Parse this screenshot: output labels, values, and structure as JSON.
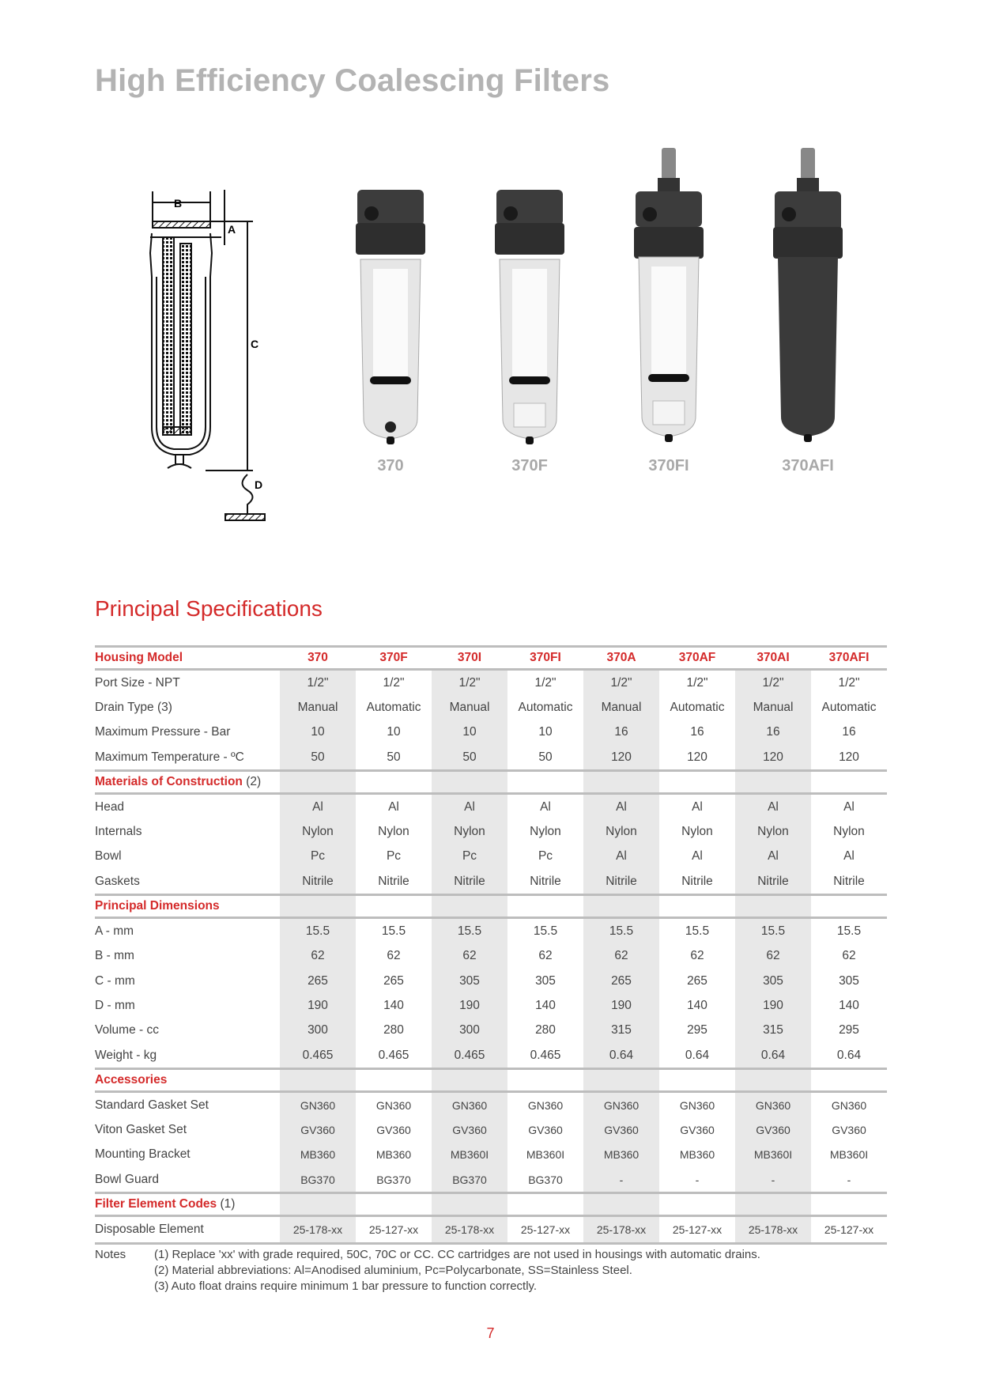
{
  "title": "High Efficiency Coalescing Filters",
  "diagram": {
    "labels": [
      "A",
      "B",
      "C",
      "D"
    ]
  },
  "products": [
    {
      "label": "370",
      "body": "clear",
      "drain": "manual",
      "valve": false
    },
    {
      "label": "370F",
      "body": "clear",
      "drain": "automatic",
      "valve": false
    },
    {
      "label": "370FI",
      "body": "clear",
      "drain": "automatic",
      "valve": true
    },
    {
      "label": "370AFI",
      "body": "metal",
      "drain": "automatic",
      "valve": true
    }
  ],
  "specs_title": "Principal Specifications",
  "table": {
    "header_label": "Housing Model",
    "models": [
      "370",
      "370F",
      "370I",
      "370FI",
      "370A",
      "370AF",
      "370AI",
      "370AFI"
    ],
    "groups": [
      {
        "title": "",
        "rows": [
          {
            "label": "Port Size - NPT",
            "values": [
              "1/2\"",
              "1/2\"",
              "1/2\"",
              "1/2\"",
              "1/2\"",
              "1/2\"",
              "1/2\"",
              "1/2\""
            ]
          },
          {
            "label": "Drain Type (3)",
            "values": [
              "Manual",
              "Automatic",
              "Manual",
              "Automatic",
              "Manual",
              "Automatic",
              "Manual",
              "Automatic"
            ]
          },
          {
            "label": "Maximum Pressure - Bar",
            "values": [
              "10",
              "10",
              "10",
              "10",
              "16",
              "16",
              "16",
              "16"
            ]
          },
          {
            "label": "Maximum Temperature - ºC",
            "values": [
              "50",
              "50",
              "50",
              "50",
              "120",
              "120",
              "120",
              "120"
            ]
          }
        ]
      },
      {
        "title": "Materials of Construction",
        "note": "(2)",
        "rows": [
          {
            "label": "Head",
            "values": [
              "Al",
              "Al",
              "Al",
              "Al",
              "Al",
              "Al",
              "Al",
              "Al"
            ]
          },
          {
            "label": "Internals",
            "values": [
              "Nylon",
              "Nylon",
              "Nylon",
              "Nylon",
              "Nylon",
              "Nylon",
              "Nylon",
              "Nylon"
            ]
          },
          {
            "label": "Bowl",
            "values": [
              "Pc",
              "Pc",
              "Pc",
              "Pc",
              "Al",
              "Al",
              "Al",
              "Al"
            ]
          },
          {
            "label": "Gaskets",
            "values": [
              "Nitrile",
              "Nitrile",
              "Nitrile",
              "Nitrile",
              "Nitrile",
              "Nitrile",
              "Nitrile",
              "Nitrile"
            ]
          }
        ]
      },
      {
        "title": "Principal Dimensions",
        "note": "",
        "rows": [
          {
            "label": "A - mm",
            "values": [
              "15.5",
              "15.5",
              "15.5",
              "15.5",
              "15.5",
              "15.5",
              "15.5",
              "15.5"
            ]
          },
          {
            "label": "B - mm",
            "values": [
              "62",
              "62",
              "62",
              "62",
              "62",
              "62",
              "62",
              "62"
            ]
          },
          {
            "label": "C - mm",
            "values": [
              "265",
              "265",
              "305",
              "305",
              "265",
              "265",
              "305",
              "305"
            ]
          },
          {
            "label": "D - mm",
            "values": [
              "190",
              "140",
              "190",
              "140",
              "190",
              "140",
              "190",
              "140"
            ]
          },
          {
            "label": "Volume - cc",
            "values": [
              "300",
              "280",
              "300",
              "280",
              "315",
              "295",
              "315",
              "295"
            ]
          },
          {
            "label": "Weight - kg",
            "values": [
              "0.465",
              "0.465",
              "0.465",
              "0.465",
              "0.64",
              "0.64",
              "0.64",
              "0.64"
            ]
          }
        ]
      },
      {
        "title": "Accessories",
        "note": "",
        "small": true,
        "rows": [
          {
            "label": "Standard Gasket Set",
            "values": [
              "GN360",
              "GN360",
              "GN360",
              "GN360",
              "GN360",
              "GN360",
              "GN360",
              "GN360"
            ]
          },
          {
            "label": "Viton Gasket Set",
            "values": [
              "GV360",
              "GV360",
              "GV360",
              "GV360",
              "GV360",
              "GV360",
              "GV360",
              "GV360"
            ]
          },
          {
            "label": "Mounting Bracket",
            "values": [
              "MB360",
              "MB360",
              "MB360I",
              "MB360I",
              "MB360",
              "MB360",
              "MB360I",
              "MB360I"
            ]
          },
          {
            "label": "Bowl Guard",
            "values": [
              "BG370",
              "BG370",
              "BG370",
              "BG370",
              "-",
              "-",
              "-",
              "-"
            ]
          }
        ]
      },
      {
        "title": "Filter Element Codes",
        "note": "(1)",
        "small": true,
        "rows": [
          {
            "label": "Disposable Element",
            "values": [
              "25-178-xx",
              "25-127-xx",
              "25-178-xx",
              "25-127-xx",
              "25-178-xx",
              "25-127-xx",
              "25-178-xx",
              "25-127-xx"
            ]
          }
        ]
      }
    ]
  },
  "notes": {
    "label": "Notes",
    "items": [
      "(1)  Replace 'xx' with grade required, 50C, 70C or CC. CC cartridges are not used in housings with automatic drains.",
      "(2)  Material abbreviations: Al=Anodised aluminium, Pc=Polycarbonate, SS=Stainless Steel.",
      "(3)  Auto float drains require minimum 1 bar pressure to function correctly."
    ]
  },
  "page_number": "7",
  "colors": {
    "accent": "#d42a2a",
    "title_gray": "#b3b3b3",
    "column_shade": "#e8e8e8",
    "rule": "#bdbdbd"
  }
}
